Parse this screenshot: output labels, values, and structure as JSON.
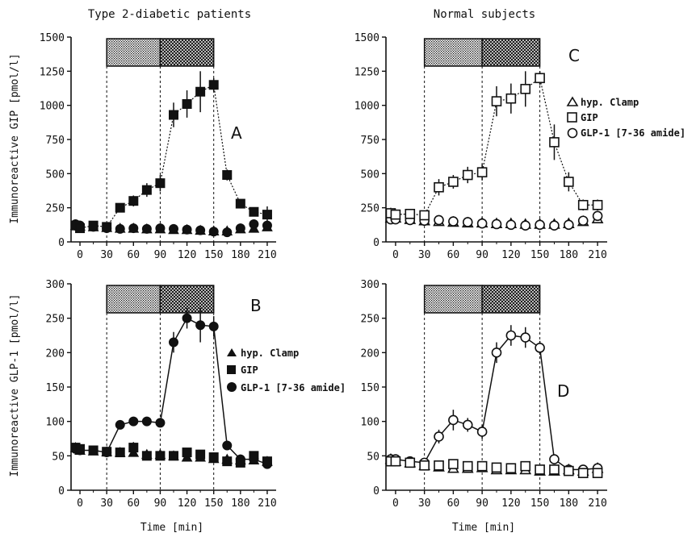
{
  "headers": {
    "left": "Type 2-diabetic patients",
    "right": "Normal subjects"
  },
  "ylabels": {
    "top": "Immunoreactive GIP [pmol/l]",
    "bottom": "Immunoreactive GLP-1 [pmol/l]"
  },
  "xlabel": "Time [min]",
  "legend": {
    "clamp": "hyp. Clamp",
    "gip": "GIP",
    "glp1": "GLP-1 [7-36 amide]"
  },
  "colors": {
    "ink": "#111111",
    "background": "#ffffff"
  },
  "infusion_shading": {
    "first": [
      30,
      90
    ],
    "second": [
      90,
      150
    ]
  },
  "chart_data": [
    {
      "type": "line",
      "panel": "A",
      "title": "Type 2-diabetic patients",
      "ylabel": "Immunoreactive GIP [pmol/l]",
      "xlabel": "Time [min]",
      "xlim": [
        -10,
        220
      ],
      "ylim": [
        0,
        1500
      ],
      "xticks": [
        0,
        30,
        60,
        90,
        120,
        150,
        180,
        210
      ],
      "yticks": [
        0,
        250,
        500,
        750,
        1000,
        1250,
        1500
      ],
      "filled": true,
      "legend_shown": false,
      "series": [
        {
          "name": "hyp. Clamp",
          "marker": "triangle",
          "line": "none",
          "x": [
            -5,
            0,
            15,
            30,
            45,
            60,
            75,
            90,
            105,
            120,
            135,
            150,
            165,
            180,
            195,
            210
          ],
          "y": [
            120,
            115,
            110,
            105,
            100,
            100,
            95,
            95,
            90,
            90,
            85,
            80,
            80,
            95,
            100,
            110
          ]
        },
        {
          "name": "GIP",
          "marker": "square",
          "line": "dotted",
          "x": [
            -5,
            0,
            15,
            30,
            45,
            60,
            75,
            90,
            105,
            120,
            135,
            150,
            165,
            180,
            195,
            210
          ],
          "y": [
            120,
            100,
            120,
            110,
            250,
            300,
            380,
            430,
            930,
            1010,
            1100,
            1150,
            490,
            280,
            220,
            200
          ],
          "err": [
            20,
            20,
            20,
            20,
            30,
            40,
            50,
            60,
            90,
            100,
            150,
            50,
            40,
            30,
            30,
            60
          ]
        },
        {
          "name": "GLP-1 [7-36 amide]",
          "marker": "circle",
          "line": "none",
          "x": [
            -5,
            0,
            15,
            30,
            45,
            60,
            75,
            90,
            105,
            120,
            135,
            150,
            165,
            180,
            195,
            210
          ],
          "y": [
            130,
            120,
            110,
            100,
            95,
            100,
            95,
            100,
            95,
            90,
            85,
            75,
            70,
            100,
            130,
            120
          ]
        }
      ]
    },
    {
      "type": "line",
      "panel": "B",
      "title": "",
      "ylabel": "Immunoreactive GLP-1 [pmol/l]",
      "xlabel": "Time [min]",
      "xlim": [
        -10,
        220
      ],
      "ylim": [
        0,
        300
      ],
      "xticks": [
        0,
        30,
        60,
        90,
        120,
        150,
        180,
        210
      ],
      "yticks": [
        0,
        50,
        100,
        150,
        200,
        250,
        300
      ],
      "filled": true,
      "legend_shown": true,
      "series": [
        {
          "name": "hyp. Clamp",
          "marker": "triangle",
          "line": "none",
          "x": [
            -5,
            0,
            15,
            30,
            45,
            60,
            75,
            90,
            105,
            120,
            135,
            150,
            165,
            180,
            195,
            210
          ],
          "y": [
            62,
            58,
            57,
            56,
            55,
            55,
            52,
            52,
            50,
            48,
            48,
            46,
            45,
            44,
            44,
            42
          ]
        },
        {
          "name": "GIP",
          "marker": "square",
          "line": "none",
          "x": [
            -5,
            0,
            15,
            30,
            45,
            60,
            75,
            90,
            105,
            120,
            135,
            150,
            165,
            180,
            195,
            210
          ],
          "y": [
            62,
            60,
            58,
            56,
            55,
            62,
            50,
            50,
            50,
            55,
            52,
            48,
            42,
            40,
            50,
            42
          ],
          "err": [
            6,
            6,
            6,
            6,
            5,
            8,
            5,
            5,
            5,
            5,
            5,
            5,
            5,
            5,
            6,
            5
          ]
        },
        {
          "name": "GLP-1 [7-36 amide]",
          "marker": "circle",
          "line": "solid",
          "x": [
            -5,
            0,
            15,
            30,
            45,
            60,
            75,
            90,
            105,
            120,
            135,
            150,
            165,
            180,
            195,
            210
          ],
          "y": [
            60,
            58,
            58,
            55,
            95,
            100,
            100,
            98,
            215,
            250,
            240,
            238,
            65,
            45,
            45,
            38
          ],
          "err": [
            6,
            6,
            6,
            6,
            5,
            5,
            5,
            5,
            15,
            15,
            25,
            15,
            5,
            5,
            5,
            5
          ]
        }
      ]
    },
    {
      "type": "line",
      "panel": "C",
      "title": "Normal subjects",
      "ylabel": "",
      "xlabel": "Time [min]",
      "xlim": [
        -10,
        220
      ],
      "ylim": [
        0,
        1500
      ],
      "xticks": [
        0,
        30,
        60,
        90,
        120,
        150,
        180,
        210
      ],
      "yticks": [
        0,
        250,
        500,
        750,
        1000,
        1250,
        1500
      ],
      "filled": false,
      "legend_shown": true,
      "series": [
        {
          "name": "hyp. Clamp",
          "marker": "triangle",
          "line": "none",
          "x": [
            -5,
            0,
            15,
            30,
            45,
            60,
            75,
            90,
            105,
            120,
            135,
            150,
            165,
            180,
            195,
            210
          ],
          "y": [
            175,
            175,
            165,
            155,
            150,
            145,
            140,
            140,
            135,
            135,
            130,
            130,
            130,
            135,
            150,
            170
          ]
        },
        {
          "name": "GIP",
          "marker": "square",
          "line": "dotted",
          "x": [
            -5,
            0,
            15,
            30,
            45,
            60,
            75,
            90,
            105,
            120,
            135,
            150,
            165,
            180,
            195,
            210
          ],
          "y": [
            210,
            200,
            205,
            195,
            400,
            440,
            490,
            510,
            1030,
            1050,
            1120,
            1200,
            730,
            440,
            270,
            270
          ],
          "err": [
            40,
            30,
            30,
            30,
            60,
            50,
            60,
            60,
            110,
            110,
            130,
            50,
            130,
            70,
            40,
            40
          ]
        },
        {
          "name": "GLP-1 [7-36 amide]",
          "marker": "circle",
          "line": "none",
          "x": [
            -5,
            0,
            15,
            30,
            45,
            60,
            75,
            90,
            105,
            120,
            135,
            150,
            165,
            180,
            195,
            210
          ],
          "y": [
            165,
            165,
            160,
            155,
            160,
            150,
            145,
            135,
            130,
            125,
            120,
            125,
            120,
            125,
            155,
            190
          ]
        }
      ]
    },
    {
      "type": "line",
      "panel": "D",
      "title": "",
      "ylabel": "",
      "xlabel": "Time [min]",
      "xlim": [
        -10,
        220
      ],
      "ylim": [
        0,
        300
      ],
      "xticks": [
        0,
        30,
        60,
        90,
        120,
        150,
        180,
        210
      ],
      "yticks": [
        0,
        50,
        100,
        150,
        200,
        250,
        300
      ],
      "filled": false,
      "legend_shown": false,
      "series": [
        {
          "name": "hyp. Clamp",
          "marker": "triangle",
          "line": "none",
          "x": [
            -5,
            0,
            15,
            30,
            45,
            60,
            75,
            90,
            105,
            120,
            135,
            150,
            165,
            180,
            195,
            210
          ],
          "y": [
            45,
            42,
            40,
            36,
            34,
            32,
            32,
            33,
            30,
            30,
            30,
            28,
            28,
            30,
            28,
            32
          ]
        },
        {
          "name": "GIP",
          "marker": "square",
          "line": "none",
          "x": [
            -5,
            0,
            15,
            30,
            45,
            60,
            75,
            90,
            105,
            120,
            135,
            150,
            165,
            180,
            195,
            210
          ],
          "y": [
            42,
            42,
            40,
            36,
            36,
            38,
            35,
            35,
            33,
            32,
            35,
            30,
            30,
            28,
            25,
            25
          ],
          "err": [
            5,
            5,
            5,
            5,
            5,
            5,
            5,
            5,
            5,
            5,
            5,
            5,
            5,
            5,
            5,
            5
          ]
        },
        {
          "name": "GLP-1 [7-36 amide]",
          "marker": "circle",
          "line": "solid",
          "x": [
            -5,
            0,
            15,
            30,
            45,
            60,
            75,
            90,
            105,
            120,
            135,
            150,
            165,
            180,
            195,
            210
          ],
          "y": [
            45,
            45,
            42,
            40,
            78,
            102,
            95,
            85,
            200,
            225,
            222,
            207,
            45,
            30,
            30,
            32
          ],
          "err": [
            5,
            5,
            5,
            5,
            10,
            15,
            10,
            10,
            15,
            15,
            15,
            10,
            5,
            5,
            5,
            5
          ]
        }
      ]
    }
  ]
}
